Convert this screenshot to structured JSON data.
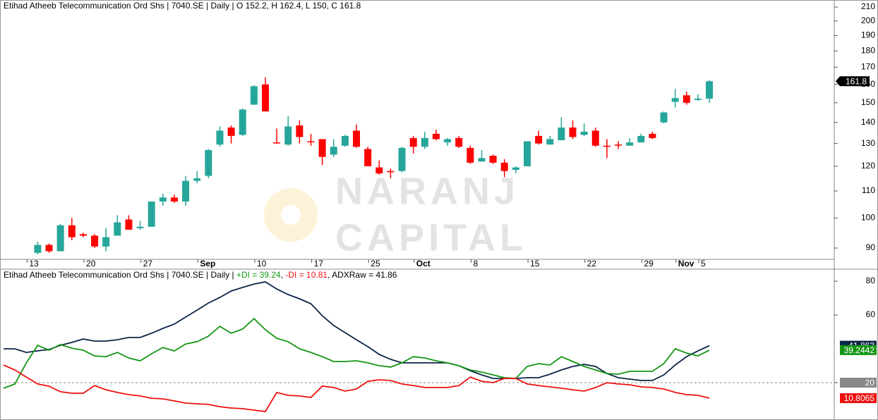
{
  "watermark": [
    "NARANJ",
    "CAPITAL"
  ],
  "chart_data": [
    {
      "type": "candlestick",
      "title": "Etihad Atheeb Telecommunication Ord Shs | 7040.SE | Daily | O 152.2, H 162.4, L 150, C 161.8",
      "categories": [
        null,
        null,
        null,
        "13",
        null,
        null,
        null,
        null,
        "20",
        null,
        null,
        null,
        null,
        "27",
        null,
        null,
        null,
        null,
        "Sep",
        null,
        null,
        null,
        null,
        "10",
        null,
        null,
        null,
        null,
        "17",
        null,
        null,
        null,
        null,
        "25",
        null,
        null,
        null,
        "Oct",
        null,
        null,
        null,
        null,
        "8",
        null,
        null,
        null,
        null,
        "15",
        null,
        null,
        null,
        null,
        "22",
        null,
        null,
        null,
        null,
        "29",
        null,
        null,
        "Nov",
        null,
        "5"
      ],
      "open": [
        null,
        null,
        null,
        88.5,
        91,
        89,
        97.5,
        94.5,
        94,
        90.5,
        94,
        99.5,
        96.5,
        97,
        106,
        107.5,
        106,
        114,
        116,
        129.5,
        137.5,
        134,
        149,
        160,
        130.5,
        129.5,
        138.5,
        131,
        132,
        125,
        129,
        136,
        127.5,
        119.5,
        118,
        118,
        132.5,
        128.5,
        134.5,
        130.5,
        132.5,
        128,
        122,
        124.5,
        121.5,
        118.5,
        120,
        133.5,
        129.5,
        131.5,
        137.5,
        134,
        136,
        129,
        129.5,
        129,
        130.5,
        134.5,
        140,
        150.5,
        154,
        151.5,
        152.2
      ],
      "high": [
        null,
        null,
        null,
        92,
        91.5,
        98,
        100,
        95,
        94.5,
        96.5,
        101,
        101,
        99,
        106,
        109,
        108.5,
        116,
        118,
        127.5,
        138,
        138.5,
        147,
        159.5,
        164,
        137,
        143,
        141,
        134.5,
        132,
        132,
        134,
        139,
        128.5,
        122.5,
        119,
        128.5,
        133.5,
        135.5,
        136.5,
        132.5,
        133.5,
        129,
        127,
        125,
        123,
        120,
        131,
        136,
        133.5,
        142.5,
        141,
        139.5,
        137.5,
        132,
        131,
        132.5,
        134.5,
        135.5,
        145.5,
        157.5,
        156,
        154.5,
        162.4
      ],
      "low": [
        null,
        null,
        null,
        88,
        88.5,
        89,
        92.5,
        93.5,
        90,
        89,
        94,
        96,
        96,
        97,
        104.5,
        105.5,
        104.5,
        113,
        115,
        128.5,
        130,
        133.5,
        149,
        145.5,
        130,
        129,
        130,
        129,
        120.5,
        124,
        128.5,
        128,
        120,
        116.5,
        115,
        117.5,
        125.5,
        127.5,
        131.5,
        129,
        128,
        121,
        122,
        121,
        115.5,
        117,
        120,
        129.5,
        129.5,
        131.5,
        132,
        133.5,
        128.5,
        123.5,
        127.5,
        129,
        130.5,
        132,
        139.5,
        147.5,
        149,
        151,
        150
      ],
      "close": [
        null,
        null,
        null,
        91,
        89,
        97.5,
        93.5,
        94,
        90.5,
        93.5,
        98.5,
        96,
        97,
        106,
        107.5,
        106,
        114,
        115,
        127,
        136,
        133.5,
        146.5,
        159,
        145.5,
        130,
        138,
        133,
        130.5,
        124,
        128.5,
        133.5,
        128.5,
        120,
        117,
        117.5,
        128,
        128.5,
        132.5,
        132,
        132,
        128.5,
        121.5,
        123.5,
        121.5,
        118,
        119.5,
        131,
        130,
        132,
        137.5,
        133,
        135.5,
        129,
        128.5,
        129,
        130.5,
        133.5,
        132.5,
        145,
        152.5,
        150,
        152.2,
        161.8
      ],
      "up_color": "#26a69a",
      "down_color": "#ff0000",
      "log": true,
      "ylim": [
        86.5,
        215.3
      ],
      "yticks": [
        90,
        100,
        110,
        120,
        130,
        140,
        150,
        160,
        170,
        180,
        190,
        200,
        210
      ]
    },
    {
      "type": "line",
      "title": [
        "Etihad Atheeb Telecommunication Ord Shs | 7040.SE | Daily | ",
        "+DI = 39.24",
        ", ",
        "-DI = 10.81",
        ", ADXRaw = 41.86"
      ],
      "series": [
        {
          "color": "#0b2545",
          "values": [
            40.0,
            40.0,
            37.9,
            38.8,
            39.6,
            42.1,
            43.8,
            45.8,
            44.6,
            44.6,
            45.4,
            46.7,
            46.7,
            49.2,
            52.1,
            54.6,
            58.8,
            62.9,
            67.1,
            70.4,
            74.2,
            76.3,
            78.3,
            79.6,
            75.4,
            72.1,
            69.6,
            66.7,
            59.6,
            53.8,
            49.6,
            45.4,
            41.3,
            36.7,
            33.8,
            31.7,
            31.7,
            31.7,
            31.7,
            31.7,
            30.0,
            27.1,
            24.6,
            22.5,
            22.5,
            22.5,
            22.9,
            22.9,
            25.0,
            27.5,
            29.6,
            30.8,
            29.6,
            25.4,
            22.9,
            22.1,
            21.3,
            21.3,
            24.6,
            30.4,
            35.4,
            38.8,
            41.863
          ]
        },
        {
          "color": "#149614",
          "values": [
            16.7,
            19.2,
            31.7,
            42.1,
            39.2,
            42.5,
            40.4,
            39.2,
            35.8,
            35.4,
            37.9,
            34.6,
            32.9,
            37.1,
            40.8,
            38.75,
            42.9,
            44.2,
            47.5,
            53.3,
            49.2,
            51.7,
            57.9,
            51.25,
            46.25,
            44.2,
            40,
            37.9,
            35.4,
            32.5,
            32.5,
            32.9,
            31.7,
            30,
            29.2,
            31.7,
            35.4,
            34.6,
            32.9,
            31.7,
            30,
            27.5,
            26.25,
            24.6,
            22.9,
            22.5,
            29.6,
            31.25,
            30.4,
            35.4,
            32.5,
            29.6,
            27.5,
            25.4,
            25,
            26.7,
            26.7,
            26.7,
            31.25,
            40,
            37.5,
            35.8,
            39.2442
          ]
        },
        {
          "color": "#ee1111",
          "values": [
            30.4,
            27.5,
            23.3,
            19.2,
            17.9,
            14.6,
            13.75,
            13.75,
            18.3,
            15.8,
            14.2,
            12.9,
            12.1,
            10.8,
            10.4,
            9.2,
            7.9,
            7.5,
            7.1,
            5.8,
            5,
            4.6,
            3.75,
            2.9,
            14.2,
            12.5,
            12.1,
            11.25,
            17.9,
            17.1,
            15,
            16.25,
            20.8,
            21.7,
            21.25,
            19.2,
            18.3,
            17.1,
            17.1,
            17.1,
            18.3,
            23.3,
            20.8,
            20,
            22.5,
            22.5,
            19.2,
            18.3,
            17.5,
            16.7,
            15.8,
            15,
            17.1,
            20,
            19.2,
            18.75,
            17.5,
            17.1,
            16.25,
            14.2,
            12.9,
            12.5,
            10.8065
          ]
        }
      ],
      "ylim": [
        -2.1,
        86.7
      ],
      "yticks": [
        20,
        60,
        80
      ],
      "reference_line": 20,
      "reference_color": "#888888"
    }
  ]
}
